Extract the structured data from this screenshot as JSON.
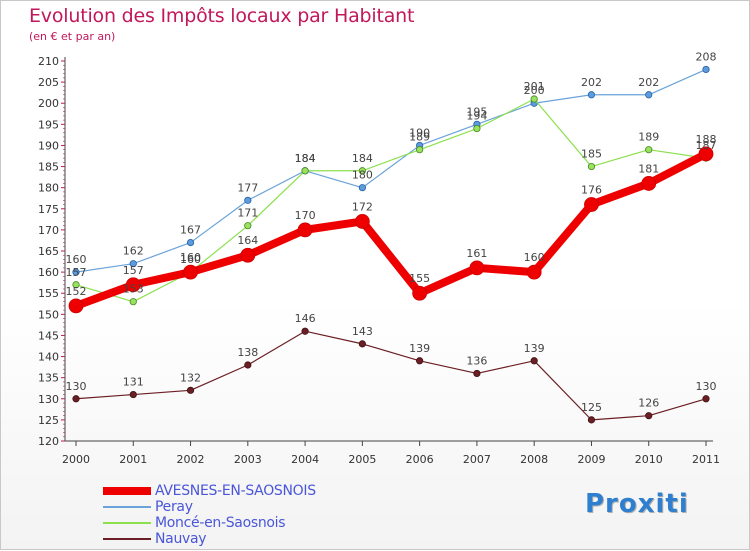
{
  "chart_data": {
    "type": "line",
    "title": "Evolution des Impôts locaux par Habitant",
    "subtitle": "(en € et par an)",
    "x": [
      "2000",
      "2001",
      "2002",
      "2003",
      "2004",
      "2005",
      "2006",
      "2007",
      "2008",
      "2009",
      "2010",
      "2011"
    ],
    "ylim": [
      120,
      210
    ],
    "y_ticks": [
      120,
      125,
      130,
      135,
      140,
      145,
      150,
      155,
      160,
      165,
      170,
      175,
      180,
      185,
      190,
      195,
      200,
      205,
      210
    ],
    "grid": false,
    "legend_position": "bottom-left",
    "series": [
      {
        "name": "AVESNES-EN-SAOSNOIS",
        "color": "#ee0000",
        "values": [
          152,
          157,
          160,
          164,
          170,
          172,
          155,
          161,
          160,
          176,
          181,
          188
        ]
      },
      {
        "name": "Peray",
        "color": "#6aa3d9",
        "values": [
          160,
          162,
          167,
          177,
          184,
          180,
          190,
          195,
          200,
          202,
          202,
          208
        ]
      },
      {
        "name": "Moncé-en-Saosnois",
        "color": "#8ce04e",
        "values": [
          157,
          153,
          160,
          171,
          184,
          184,
          189,
          194,
          201,
          185,
          189,
          187
        ]
      },
      {
        "name": "Nauvay",
        "color": "#6b1f24",
        "values": [
          130,
          131,
          132,
          138,
          146,
          143,
          139,
          136,
          139,
          125,
          126,
          130
        ]
      }
    ]
  },
  "logo_text": "Proxiti"
}
